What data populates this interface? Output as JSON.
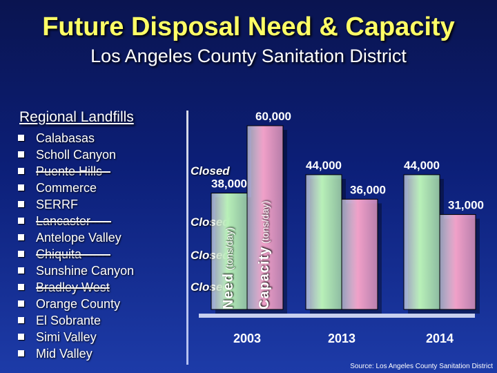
{
  "header": {
    "title": "Future Disposal Need & Capacity",
    "subtitle": "Los Angeles County Sanitation District"
  },
  "landfills": {
    "title": "Regional Landfills",
    "items": [
      {
        "label": "Calabasas",
        "struck": false
      },
      {
        "label": "Scholl Canyon",
        "struck": false
      },
      {
        "label": "Puente Hills--",
        "struck": true
      },
      {
        "label": "Commerce",
        "struck": false
      },
      {
        "label": "SERRF",
        "struck": false
      },
      {
        "label": "Lancaster-----",
        "struck": true
      },
      {
        "label": "Antelope Valley",
        "struck": false
      },
      {
        "label": "Chiquita-------",
        "struck": true
      },
      {
        "label": "Sunshine Canyon",
        "struck": false
      },
      {
        "label": "Bradley West",
        "struck": true
      },
      {
        "label": "Orange County",
        "struck": false
      },
      {
        "label": "El Sobrante",
        "struck": false
      },
      {
        "label": "Simi Valley",
        "struck": false
      },
      {
        "label": "Mid Valley",
        "struck": false
      }
    ],
    "closed_label": "Closed"
  },
  "chart_data": {
    "type": "bar",
    "categories": [
      "2003",
      "2013",
      "2014"
    ],
    "series": [
      {
        "name": "Need",
        "values": [
          38000,
          44000,
          44000
        ],
        "labels": [
          "38,000",
          "44,000",
          "44,000"
        ],
        "color": "#b8f0b8"
      },
      {
        "name": "Capacity",
        "values": [
          60000,
          36000,
          31000
        ],
        "labels": [
          "60,000",
          "36,000",
          "31,000"
        ],
        "color": "#f0a0c8"
      }
    ],
    "need_axis": {
      "big": "Need",
      "small": " (tons/day)"
    },
    "capacity_axis": {
      "big": "Capacity",
      "small": " (tons/day)"
    },
    "label_color": "#ffffff",
    "grid": false
  },
  "footer": {
    "source": "Source: Los Angeles County Sanitation District"
  }
}
